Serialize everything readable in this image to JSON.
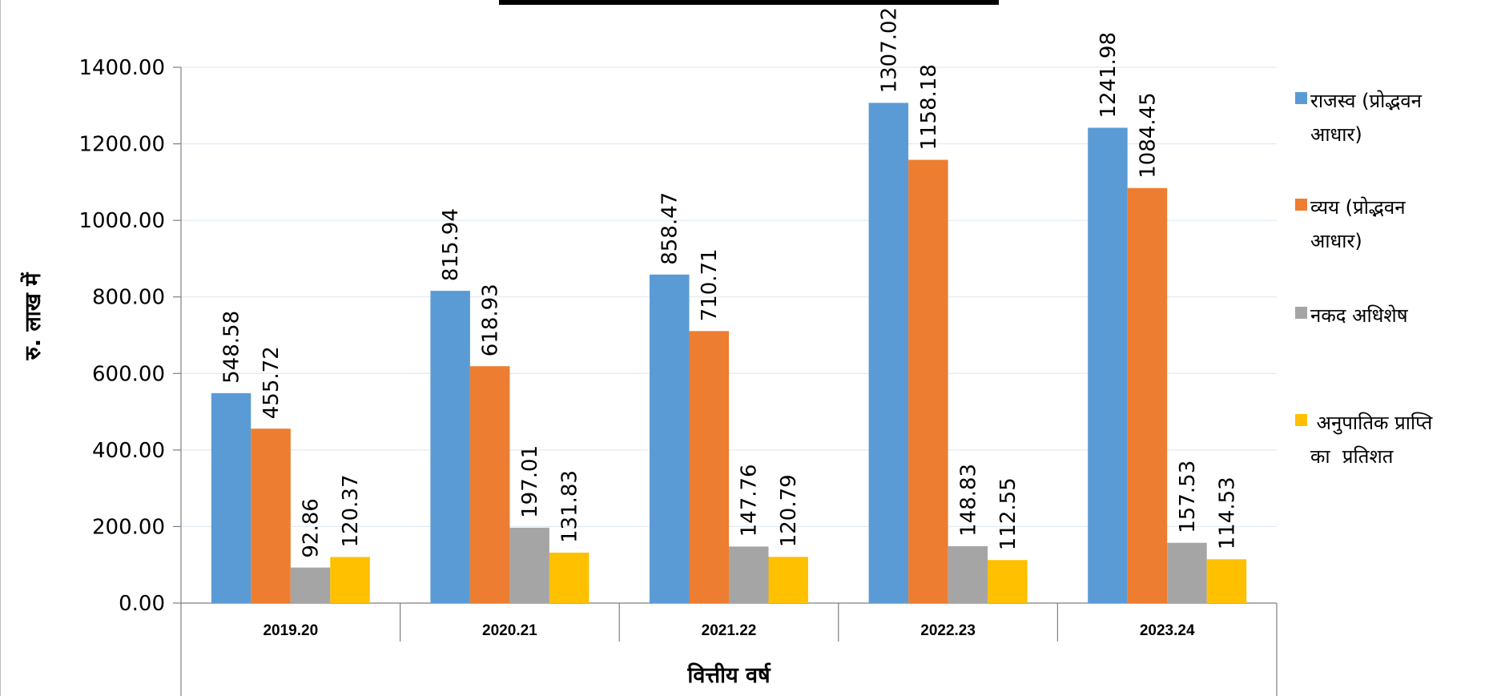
{
  "chart_data": {
    "type": "bar",
    "title": "",
    "xlabel": "वित्तीय वर्ष",
    "ylabel": "रु. लाख में",
    "ylim": [
      0,
      1400
    ],
    "yticks": [
      "0.00",
      "200.00",
      "400.00",
      "600.00",
      "800.00",
      "1000.00",
      "1200.00",
      "1400.00"
    ],
    "categories": [
      "2019.20",
      "2020.21",
      "2021.22",
      "2022.23",
      "2023.24"
    ],
    "grid": true,
    "legend_position": "right",
    "series": [
      {
        "name": [
          "राजस्व (प्रोद्भवन",
          "आधार)"
        ],
        "color": "#5B9BD5",
        "values": [
          548.58,
          815.94,
          858.47,
          1307.02,
          1241.98
        ],
        "labels": [
          "548.58",
          "815.94",
          "858.47",
          "1307.02",
          "1241.98"
        ]
      },
      {
        "name": [
          "व्यय (प्रोद्भवन",
          "आधार)"
        ],
        "color": "#ED7D31",
        "values": [
          455.72,
          618.93,
          710.71,
          1158.18,
          1084.45
        ],
        "labels": [
          "455.72",
          "618.93",
          "710.71",
          "1158.18",
          "1084.45"
        ]
      },
      {
        "name": [
          "नकद अधिशेष"
        ],
        "color": "#A5A5A5",
        "values": [
          92.86,
          197.01,
          147.76,
          148.83,
          157.53
        ],
        "labels": [
          "92.86",
          "197.01",
          "147.76",
          "148.83",
          "157.53"
        ]
      },
      {
        "name": [
          " अनुपातिक प्राप्ति",
          "का  प्रतिशत"
        ],
        "color": "#FFC000",
        "values": [
          120.37,
          131.83,
          120.79,
          112.55,
          114.53
        ],
        "labels": [
          "120.37",
          "131.83",
          "120.79",
          "112.55",
          "114.53"
        ]
      }
    ]
  }
}
